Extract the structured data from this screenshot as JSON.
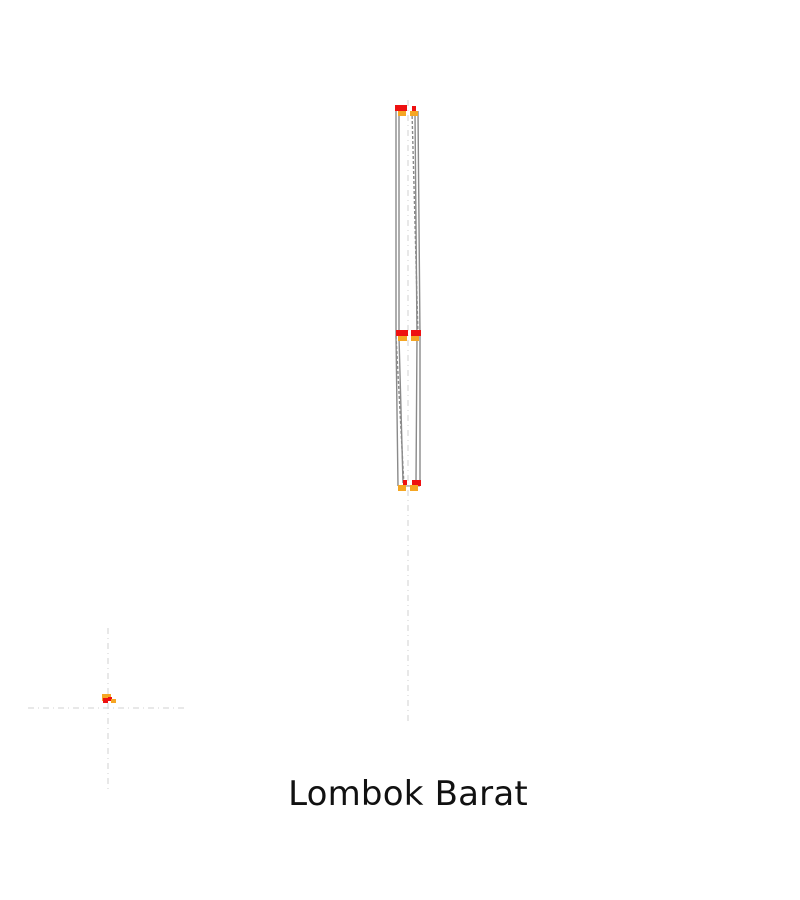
{
  "map": {
    "title": "Lombok Barat",
    "colors": {
      "background": "#ffffff",
      "route_line": "#8a8a8a",
      "guide_line": "#d9d9d9",
      "marker_primary": "#ee1111",
      "marker_secondary": "#f5a623"
    }
  }
}
